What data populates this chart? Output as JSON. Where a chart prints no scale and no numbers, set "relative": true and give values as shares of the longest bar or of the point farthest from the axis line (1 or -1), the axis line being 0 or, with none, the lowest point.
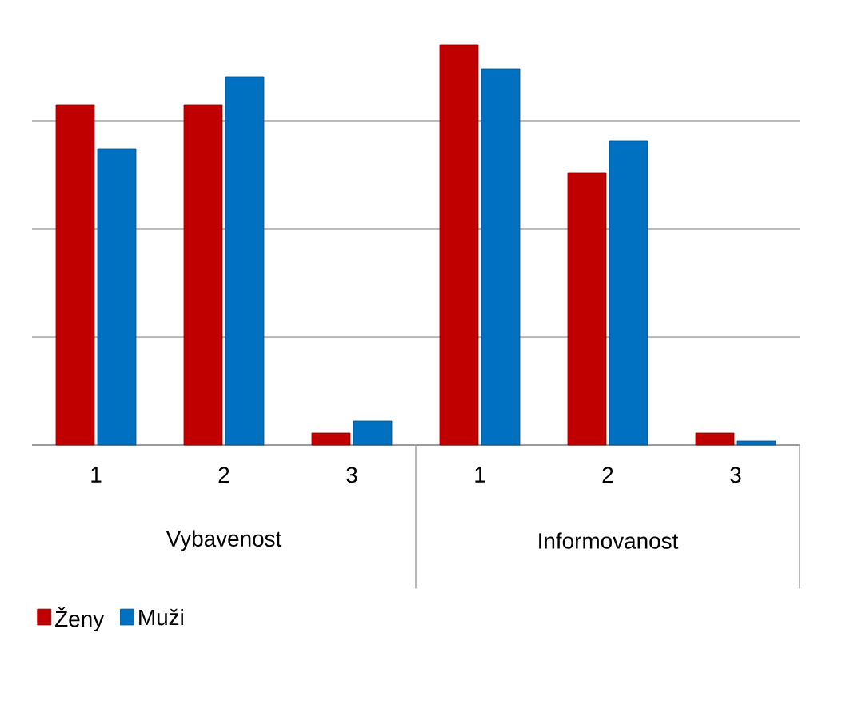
{
  "chart_data": {
    "type": "bar",
    "relative": true,
    "categories": [
      "1",
      "2",
      "3",
      "1",
      "2",
      "3"
    ],
    "series": [
      {
        "name": "Ženy",
        "color": "#c00000",
        "values": [
          0.85,
          0.85,
          0.03,
          1.0,
          0.68,
          0.03
        ]
      },
      {
        "name": "Muži",
        "color": "#0070c0",
        "values": [
          0.74,
          0.92,
          0.06,
          0.94,
          0.76,
          0.01
        ]
      }
    ],
    "annotations": [
      "Vybavenost",
      "Informovanost"
    ],
    "grid": "y",
    "legend": "bottom left"
  }
}
